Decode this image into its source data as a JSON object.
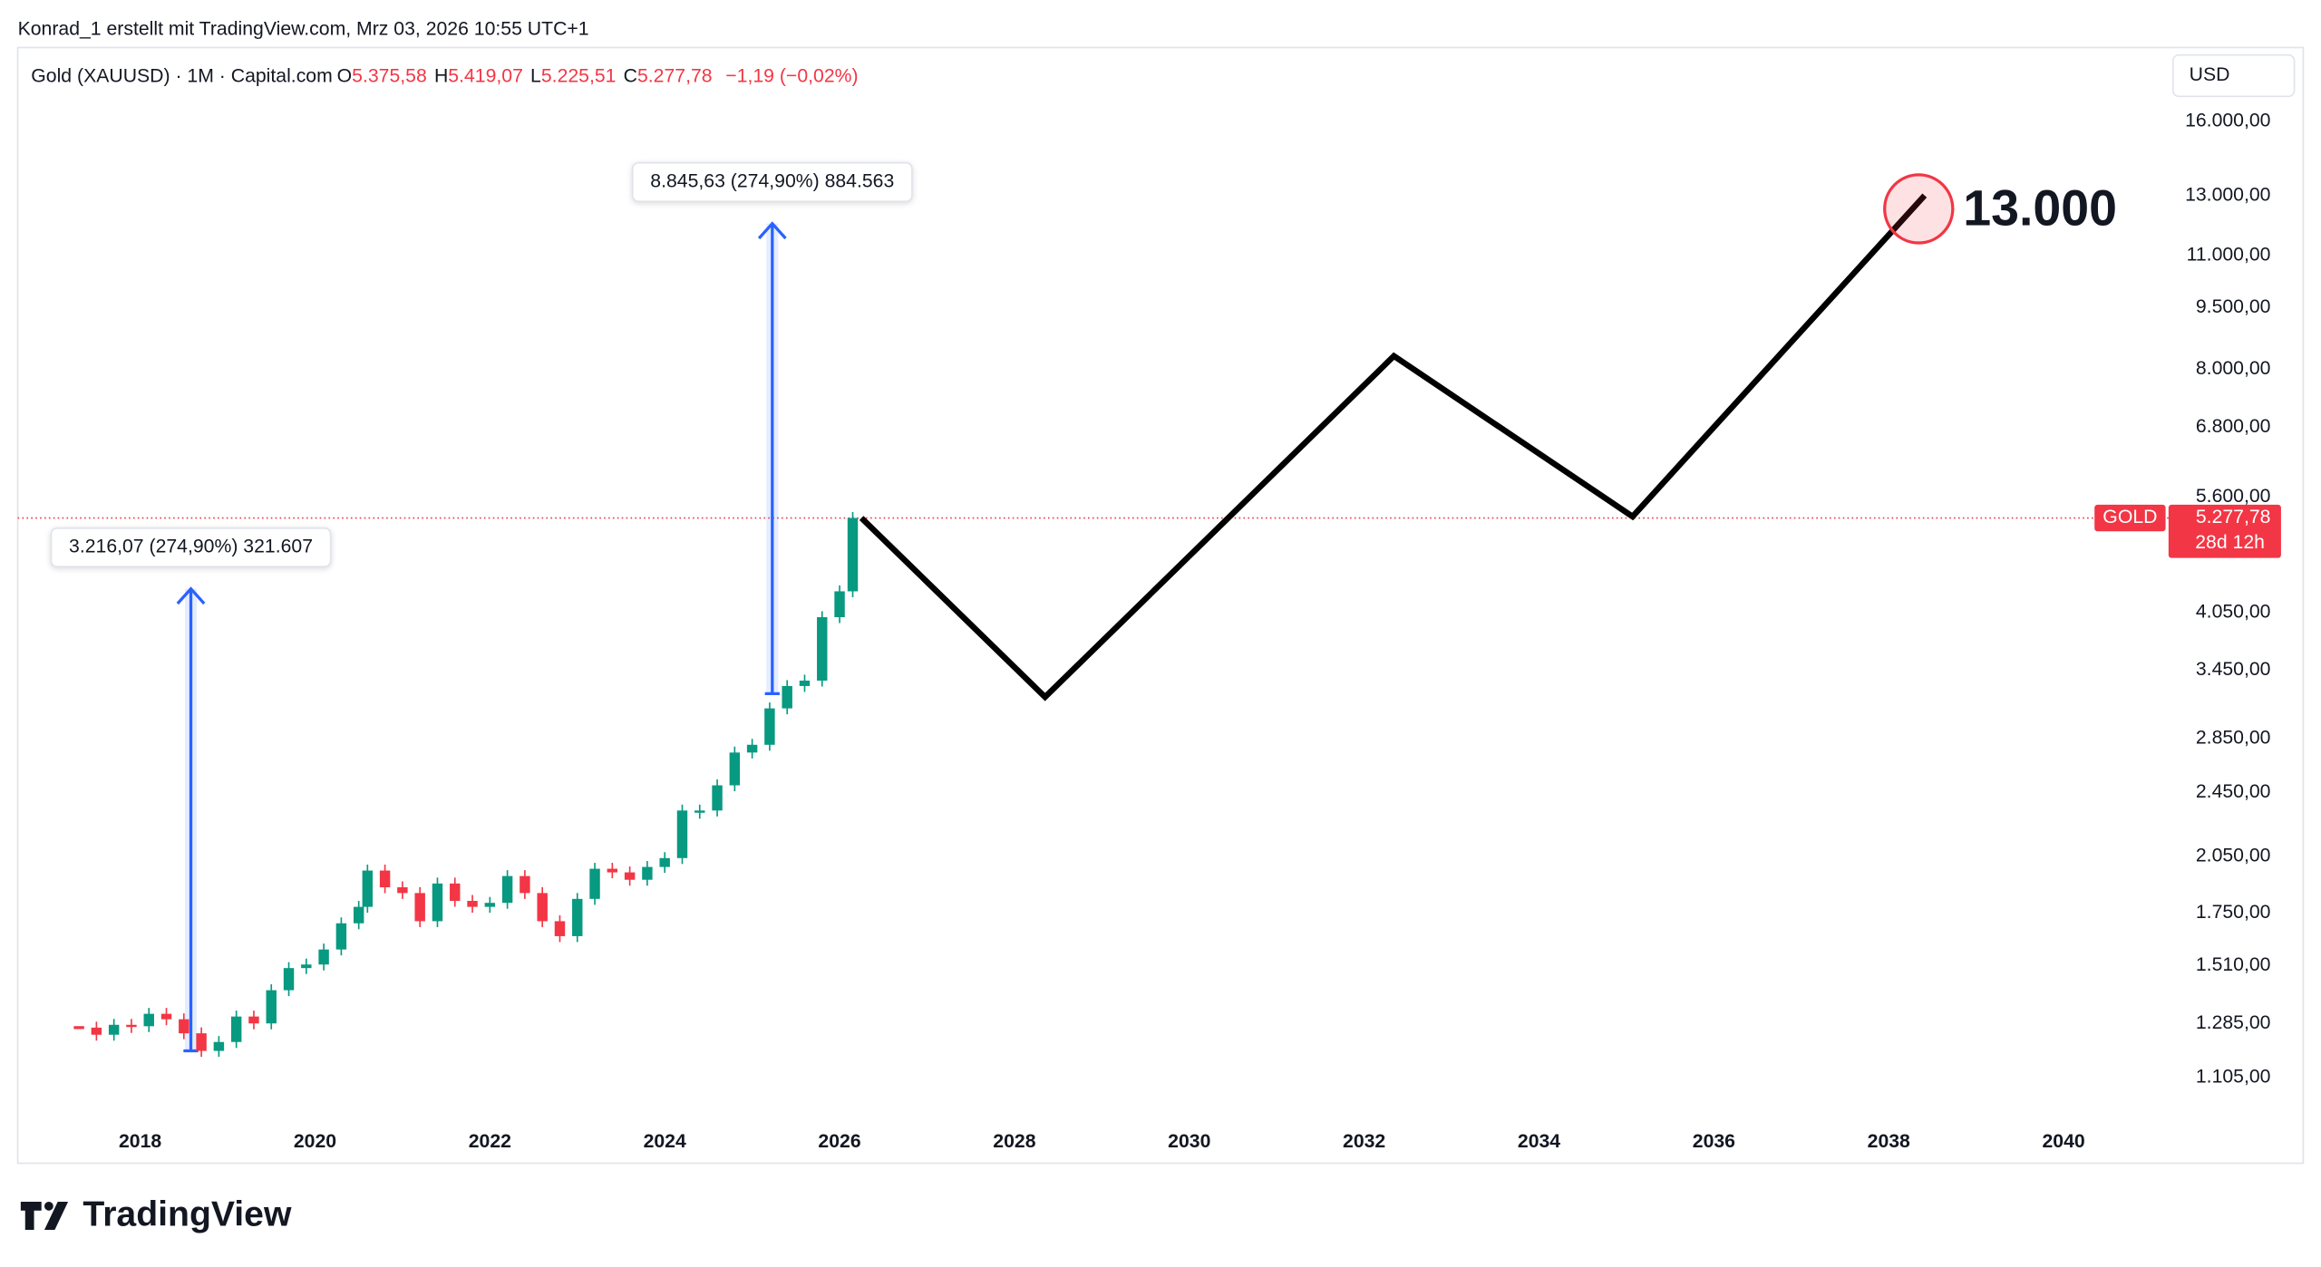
{
  "header": {
    "attribution": "Konrad_1 erstellt mit TradingView.com, Mrz 03, 2026 10:55 UTC+1",
    "logo": "TradingView"
  },
  "chart_data": {
    "type": "candlestick",
    "symbol": "Gold (XAUUSD) · 1M · Capital.com",
    "ohlc_legend": [
      {
        "label": "O",
        "value": "5.375,58"
      },
      {
        "label": "H",
        "value": "5.419,07"
      },
      {
        "label": "L",
        "value": "5.225,51"
      },
      {
        "label": "C",
        "value": "5.277,78"
      }
    ],
    "change": "−1,19 (−0,02%)",
    "currency": "USD",
    "log_scale": true,
    "x": [
      2017.3,
      2017.5,
      2017.7,
      2017.9,
      2018.1,
      2018.3,
      2018.5,
      2018.7,
      2018.9,
      2019.1,
      2019.3,
      2019.5,
      2019.7,
      2019.9,
      2020.1,
      2020.3,
      2020.5,
      2020.6,
      2020.8,
      2021.0,
      2021.2,
      2021.4,
      2021.6,
      2021.8,
      2022.0,
      2022.2,
      2022.4,
      2022.6,
      2022.8,
      2023.0,
      2023.2,
      2023.4,
      2023.6,
      2023.8,
      2024.0,
      2024.2,
      2024.4,
      2024.6,
      2024.8,
      2025.0,
      2025.2,
      2025.4,
      2025.6,
      2025.8,
      2026.0,
      2026.15
    ],
    "series": [
      {
        "name": "GOLD",
        "up_color": "#089981",
        "down_color": "#f23645",
        "values": [
          1270,
          1245,
          1280,
          1275,
          1320,
          1300,
          1250,
          1190,
          1220,
          1310,
          1285,
          1410,
          1500,
          1515,
          1580,
          1700,
          1780,
          1970,
          1880,
          1850,
          1710,
          1900,
          1810,
          1780,
          1800,
          1940,
          1850,
          1710,
          1640,
          1820,
          1980,
          1960,
          1920,
          1990,
          2040,
          2330,
          2330,
          2500,
          2740,
          2800,
          3100,
          3300,
          3350,
          4000,
          4300,
          5278
        ]
      }
    ],
    "last_price": 5277.78,
    "price_tag": {
      "name": "GOLD",
      "price": "5.277,78",
      "countdown": "28d 12h",
      "color": "#f23645"
    },
    "projection": {
      "color": "#000000",
      "x": [
        2026.25,
        2028.35,
        2032.34,
        2035.07,
        2038.41
      ],
      "values": [
        5278,
        3200,
        8300,
        5300,
        13000
      ]
    },
    "target_annotation": "13.000",
    "measurements": [
      {
        "x": 2018.58,
        "from": 1190,
        "to": 4330,
        "label": "3.216,07 (274,90%) 321.607"
      },
      {
        "x": 2025.23,
        "from": 3230,
        "to": 12020,
        "label": "8.845,63 (274,90%) 884.563"
      }
    ],
    "xlim": [
      2016.6,
      2041.2
    ],
    "xticks": [
      2018,
      2020,
      2022,
      2024,
      2026,
      2028,
      2030,
      2032,
      2034,
      2036,
      2038,
      2040
    ],
    "ylim": [
      1030,
      16800
    ],
    "yticks": [
      {
        "value": 16000,
        "label": "16.000,00"
      },
      {
        "value": 13000,
        "label": "13.000,00"
      },
      {
        "value": 11000,
        "label": "11.000,00"
      },
      {
        "value": 9500,
        "label": "9.500,00"
      },
      {
        "value": 8000,
        "label": "8.000,00"
      },
      {
        "value": 6800,
        "label": "6.800,00"
      },
      {
        "value": 5600,
        "label": "5.600,00"
      },
      {
        "value": 4050,
        "label": "4.050,00"
      },
      {
        "value": 3450,
        "label": "3.450,00"
      },
      {
        "value": 2850,
        "label": "2.850,00"
      },
      {
        "value": 2450,
        "label": "2.450,00"
      },
      {
        "value": 2050,
        "label": "2.050,00"
      },
      {
        "value": 1750,
        "label": "1.750,00"
      },
      {
        "value": 1510,
        "label": "1.510,00"
      },
      {
        "value": 1285,
        "label": "1.285,00"
      },
      {
        "value": 1105,
        "label": "1.105,00"
      }
    ]
  }
}
